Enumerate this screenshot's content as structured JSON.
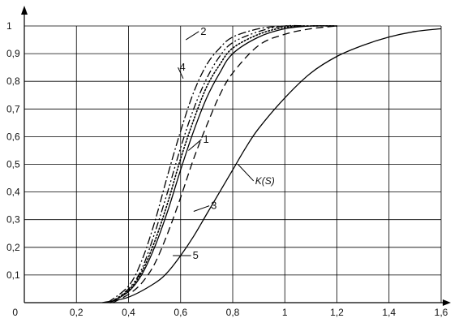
{
  "chart_data": {
    "type": "line",
    "xlim": [
      0,
      1.6
    ],
    "ylim": [
      0,
      1
    ],
    "x_ticks": [
      {
        "v": 0,
        "label": "0"
      },
      {
        "v": 0.2,
        "label": "0,2"
      },
      {
        "v": 0.4,
        "label": "0,4"
      },
      {
        "v": 0.6,
        "label": "0,6"
      },
      {
        "v": 0.8,
        "label": "0,8"
      },
      {
        "v": 1.0,
        "label": "1"
      },
      {
        "v": 1.2,
        "label": "1,2"
      },
      {
        "v": 1.4,
        "label": "1,4"
      },
      {
        "v": 1.6,
        "label": "1,6"
      }
    ],
    "y_ticks": [
      {
        "v": 0.1,
        "label": "0,1"
      },
      {
        "v": 0.2,
        "label": "0,2"
      },
      {
        "v": 0.3,
        "label": "0,3"
      },
      {
        "v": 0.4,
        "label": "0,4"
      },
      {
        "v": 0.5,
        "label": "0,5"
      },
      {
        "v": 0.6,
        "label": "0,6"
      },
      {
        "v": 0.7,
        "label": "0,7"
      },
      {
        "v": 0.8,
        "label": "0,8"
      },
      {
        "v": 0.9,
        "label": "0,9"
      },
      {
        "v": 1.0,
        "label": "1"
      }
    ],
    "grid": true,
    "series": [
      {
        "name": "1",
        "style": "solid",
        "x": [
          0.33,
          0.4,
          0.45,
          0.5,
          0.55,
          0.6,
          0.65,
          0.7,
          0.75,
          0.8,
          0.9,
          1.0,
          1.1,
          1.2
        ],
        "y": [
          0.0,
          0.04,
          0.1,
          0.2,
          0.33,
          0.48,
          0.62,
          0.74,
          0.83,
          0.9,
          0.96,
          0.99,
          1.0,
          1.0
        ]
      },
      {
        "name": "2",
        "style": "dashdot",
        "x": [
          0.32,
          0.4,
          0.45,
          0.5,
          0.55,
          0.6,
          0.65,
          0.7,
          0.75,
          0.8,
          0.9,
          1.0,
          1.1,
          1.2
        ],
        "y": [
          0.0,
          0.06,
          0.15,
          0.29,
          0.46,
          0.62,
          0.76,
          0.86,
          0.92,
          0.96,
          0.99,
          1.0,
          1.0,
          1.0
        ]
      },
      {
        "name": "3",
        "style": "dashed",
        "x": [
          0.34,
          0.4,
          0.45,
          0.5,
          0.55,
          0.6,
          0.65,
          0.7,
          0.75,
          0.8,
          0.9,
          1.0,
          1.1,
          1.2
        ],
        "y": [
          0.0,
          0.03,
          0.07,
          0.14,
          0.25,
          0.38,
          0.52,
          0.64,
          0.75,
          0.83,
          0.93,
          0.97,
          0.99,
          1.0
        ]
      },
      {
        "name": "4",
        "style": "dashdotdot",
        "x": [
          0.33,
          0.4,
          0.45,
          0.5,
          0.55,
          0.6,
          0.65,
          0.7,
          0.75,
          0.8,
          0.9,
          1.0,
          1.1,
          1.2
        ],
        "y": [
          0.0,
          0.05,
          0.12,
          0.25,
          0.4,
          0.56,
          0.7,
          0.81,
          0.89,
          0.94,
          0.98,
          1.0,
          1.0,
          1.0
        ]
      },
      {
        "name": "5",
        "style": "dotted",
        "x": [
          0.33,
          0.4,
          0.45,
          0.5,
          0.55,
          0.6,
          0.65,
          0.7,
          0.75,
          0.8,
          0.9,
          1.0,
          1.1,
          1.2
        ],
        "y": [
          0.0,
          0.045,
          0.11,
          0.22,
          0.36,
          0.52,
          0.66,
          0.78,
          0.86,
          0.92,
          0.97,
          0.995,
          1.0,
          1.0
        ]
      },
      {
        "name": "K(S)",
        "style": "solid",
        "x": [
          0.3,
          0.4,
          0.5,
          0.55,
          0.6,
          0.65,
          0.7,
          0.75,
          0.8,
          0.85,
          0.9,
          1.0,
          1.1,
          1.2,
          1.3,
          1.4,
          1.5,
          1.6
        ],
        "y": [
          0.0,
          0.02,
          0.07,
          0.11,
          0.17,
          0.24,
          0.32,
          0.4,
          0.48,
          0.56,
          0.63,
          0.74,
          0.83,
          0.89,
          0.93,
          0.96,
          0.98,
          0.99
        ]
      }
    ],
    "annotations": [
      {
        "series": "2",
        "text": "2",
        "x": 0.62,
        "y": 0.95,
        "tx": 0.67,
        "ty": 0.98
      },
      {
        "series": "4",
        "text": "4",
        "x": 0.61,
        "y": 0.81,
        "tx": 0.59,
        "ty": 0.85
      },
      {
        "series": "1",
        "text": "1",
        "x": 0.63,
        "y": 0.55,
        "tx": 0.68,
        "ty": 0.59
      },
      {
        "series": "K(S)",
        "text": "K(S)",
        "x": 0.82,
        "y": 0.5,
        "tx": 0.88,
        "ty": 0.44
      },
      {
        "series": "3",
        "text": "3",
        "x": 0.65,
        "y": 0.33,
        "tx": 0.71,
        "ty": 0.35
      },
      {
        "series": "5",
        "text": "5",
        "x": 0.57,
        "y": 0.17,
        "tx": 0.64,
        "ty": 0.17
      }
    ]
  }
}
